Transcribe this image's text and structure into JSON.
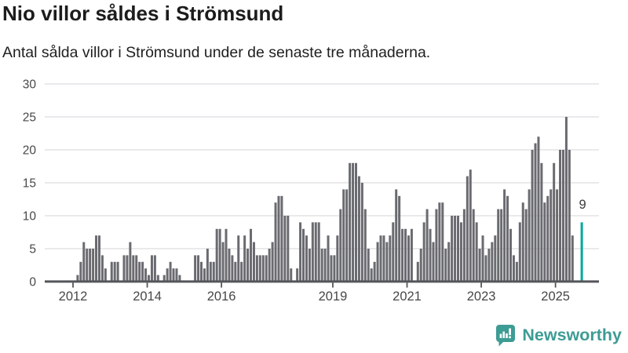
{
  "header": {
    "title": "Nio villor såldes i Strömsund",
    "subtitle": "Antal sålda villor i Strömsund under de senaste tre månaderna."
  },
  "chart_data": {
    "type": "bar",
    "title": "Nio villor såldes i Strömsund",
    "xlabel": "",
    "ylabel": "",
    "ylim": [
      0,
      30
    ],
    "yticks": [
      0,
      5,
      10,
      15,
      20,
      25,
      30
    ],
    "grid": true,
    "legend": "none",
    "start_year": 2012,
    "x_unit": "month",
    "values": [
      0,
      1,
      3,
      6,
      5,
      5,
      5,
      7,
      7,
      4,
      2,
      0,
      3,
      3,
      3,
      0,
      4,
      4,
      6,
      4,
      4,
      3,
      3,
      2,
      1,
      4,
      4,
      1,
      0,
      1,
      2,
      3,
      2,
      2,
      1,
      0,
      0,
      0,
      0,
      4,
      4,
      3,
      2,
      5,
      3,
      3,
      8,
      8,
      6,
      8,
      5,
      4,
      3,
      7,
      3,
      7,
      5,
      8,
      6,
      4,
      4,
      4,
      4,
      5,
      6,
      12,
      13,
      13,
      10,
      10,
      2,
      0,
      2,
      9,
      8,
      7,
      5,
      9,
      9,
      9,
      5,
      5,
      7,
      4,
      4,
      7,
      11,
      14,
      14,
      18,
      18,
      18,
      16,
      15,
      11,
      5,
      2,
      3,
      6,
      7,
      7,
      6,
      7,
      9,
      14,
      13,
      8,
      8,
      7,
      8,
      0,
      3,
      5,
      9,
      11,
      8,
      6,
      11,
      12,
      12,
      5,
      6,
      10,
      10,
      10,
      9,
      11,
      16,
      17,
      11,
      9,
      5,
      7,
      4,
      5,
      6,
      7,
      11,
      11,
      14,
      13,
      8,
      4,
      3,
      9,
      12,
      11,
      14,
      20,
      21,
      22,
      18,
      12,
      13,
      14,
      18,
      14,
      20,
      20,
      25,
      20,
      7,
      0,
      0,
      9
    ],
    "highlight_index": 164,
    "highlight_value": 9,
    "highlight_label": "9",
    "bar_color": "#6a6b70",
    "highlight_color": "#00a79b",
    "axis_color": "#54565b",
    "grid_color": "#e4e4e6",
    "tick_text_color": "#47474a",
    "annotation_color": "#3b3b3d",
    "xtick_labels": [
      "2012",
      "2014",
      "2016",
      "2019",
      "2021",
      "2023",
      "2025"
    ],
    "xtick_month_indices": [
      0,
      24,
      48,
      84,
      108,
      132,
      156
    ]
  },
  "footer": {
    "brand": "Newsworthy",
    "brand_color": "#3d9c94"
  }
}
